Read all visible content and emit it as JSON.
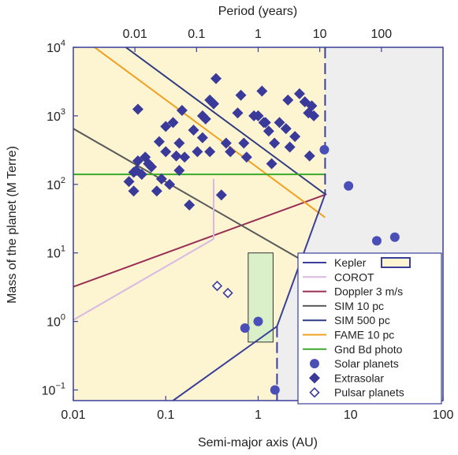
{
  "chart_data": {
    "type": "scatter",
    "xlabel": "Semi-major axis (AU)",
    "ylabel": "Mass of the planet (M Terre)",
    "x2label": "Period (years)",
    "xscale": "log",
    "yscale": "log",
    "xlim": [
      0.01,
      100
    ],
    "ylim": [
      0.07,
      10000
    ],
    "x_ticks": [
      {
        "value": 0.01,
        "label": "0.01"
      },
      {
        "value": 0.1,
        "label": "0.1"
      },
      {
        "value": 1,
        "label": "1"
      },
      {
        "value": 10,
        "label": "10"
      },
      {
        "value": 100,
        "label": "100"
      }
    ],
    "top_ticks": [
      {
        "value": 0.01,
        "label": "0.01"
      },
      {
        "value": 0.1,
        "label": "0.1"
      },
      {
        "value": 1,
        "label": "1"
      },
      {
        "value": 10,
        "label": "10"
      },
      {
        "value": 100,
        "label": "100"
      }
    ],
    "y_ticks": [
      {
        "value": 0.1,
        "base": "10",
        "exp": "−1"
      },
      {
        "value": 1,
        "base": "10",
        "exp": "0"
      },
      {
        "value": 10,
        "base": "10",
        "exp": "1"
      },
      {
        "value": 100,
        "base": "10",
        "exp": "2"
      },
      {
        "value": 1000,
        "base": "10",
        "exp": "3"
      },
      {
        "value": 10000,
        "base": "10",
        "exp": "4"
      }
    ],
    "legend_position": "bottom-right",
    "grid": false,
    "colors": {
      "kepler": "#3a3f9a",
      "corot": "#d8b8e2",
      "doppler": "#9a2f55",
      "sim10": "#5a5a5a",
      "sim500": "#2f3c80",
      "fame": "#f0a020",
      "gnd": "#3aaa2a",
      "solar": "#4a4fb8",
      "extrasolar": "#3a3a9a",
      "pulsar": "#3a3a9a",
      "region_fill": "#fdf5d2",
      "outer_fill": "#eeeeef",
      "gnd_fill": "#d9f0c8"
    },
    "lines": [
      {
        "name": "Doppler 3 m/s",
        "color": "doppler",
        "points": [
          [
            0.01,
            3.2
          ],
          [
            5.5,
            72
          ]
        ]
      },
      {
        "name": "SIM 10 pc",
        "color": "sim10",
        "points": [
          [
            0.01,
            650
          ],
          [
            4.2,
            6
          ]
        ]
      },
      {
        "name": "SIM 500 pc",
        "color": "sim500",
        "points": [
          [
            0.037,
            10000
          ],
          [
            5.3,
            72
          ]
        ]
      },
      {
        "name": "FAME 10 pc",
        "color": "fame",
        "points": [
          [
            0.017,
            10000
          ],
          [
            5.3,
            33
          ]
        ]
      },
      {
        "name": "Gnd Bd photo",
        "color": "gnd",
        "points": [
          [
            0.01,
            140
          ],
          [
            5.3,
            140
          ]
        ]
      },
      {
        "name": "COROT",
        "color": "corot",
        "points": [
          [
            0.01,
            1.05
          ],
          [
            0.33,
            16
          ]
        ]
      }
    ],
    "series": [
      {
        "name": "Extrasolar",
        "marker": "diamond-filled",
        "points": [
          [
            0.05,
            1250
          ],
          [
            0.04,
            110
          ],
          [
            0.045,
            150
          ],
          [
            0.048,
            160
          ],
          [
            0.05,
            220
          ],
          [
            0.055,
            140
          ],
          [
            0.06,
            250
          ],
          [
            0.045,
            80
          ],
          [
            0.065,
            200
          ],
          [
            0.07,
            180
          ],
          [
            0.085,
            420
          ],
          [
            0.1,
            300
          ],
          [
            0.12,
            800
          ],
          [
            0.15,
            1200
          ],
          [
            0.1,
            700
          ],
          [
            0.09,
            120
          ],
          [
            0.08,
            80
          ],
          [
            0.11,
            100
          ],
          [
            0.13,
            260
          ],
          [
            0.14,
            160
          ],
          [
            0.16,
            250
          ],
          [
            0.14,
            400
          ],
          [
            0.18,
            50
          ],
          [
            0.2,
            620
          ],
          [
            0.22,
            300
          ],
          [
            0.25,
            1000
          ],
          [
            0.3,
            300
          ],
          [
            0.27,
            900
          ],
          [
            0.33,
            1500
          ],
          [
            0.35,
            3500
          ],
          [
            0.3,
            1700
          ],
          [
            0.5,
            300
          ],
          [
            0.45,
            400
          ],
          [
            0.6,
            1100
          ],
          [
            0.65,
            2000
          ],
          [
            0.7,
            400
          ],
          [
            0.75,
            250
          ],
          [
            0.9,
            1000
          ],
          [
            1.1,
            2300
          ],
          [
            1.0,
            1000
          ],
          [
            1.2,
            800
          ],
          [
            1.3,
            600
          ],
          [
            1.5,
            400
          ],
          [
            1.7,
            800
          ],
          [
            2.0,
            650
          ],
          [
            2.1,
            1700
          ],
          [
            2.5,
            500
          ],
          [
            2.8,
            2100
          ],
          [
            3.2,
            1600
          ],
          [
            3.5,
            1100
          ],
          [
            3.8,
            1400
          ],
          [
            4.0,
            1000
          ],
          [
            2.2,
            350
          ],
          [
            1.4,
            200
          ],
          [
            0.4,
            70
          ],
          [
            3.6,
            260
          ],
          [
            1.15,
            800
          ],
          [
            0.25,
            480
          ]
        ]
      },
      {
        "name": "Solar planets",
        "marker": "circle-filled",
        "points": [
          [
            0.39,
            0.055
          ],
          [
            0.72,
            0.8
          ],
          [
            1.0,
            1.0
          ],
          [
            1.52,
            0.1
          ],
          [
            5.2,
            320
          ],
          [
            9.5,
            95
          ],
          [
            19.2,
            15
          ],
          [
            30.1,
            17
          ]
        ]
      },
      {
        "name": "Pulsar planets",
        "marker": "diamond-open",
        "points": [
          [
            0.36,
            3.3
          ],
          [
            0.47,
            2.6
          ]
        ]
      }
    ],
    "legend": [
      {
        "label": "Kepler",
        "kind": "line-box",
        "color": "kepler"
      },
      {
        "label": "COROT",
        "kind": "line",
        "color": "corot"
      },
      {
        "label": "Doppler 3 m/s",
        "kind": "line",
        "color": "doppler"
      },
      {
        "label": "SIM 10 pc",
        "kind": "line",
        "color": "sim10"
      },
      {
        "label": "SIM 500 pc",
        "kind": "line",
        "color": "sim500"
      },
      {
        "label": "FAME 10 pc",
        "kind": "line",
        "color": "fame"
      },
      {
        "label": "Gnd Bd photo",
        "kind": "line",
        "color": "gnd"
      },
      {
        "label": "Solar planets",
        "kind": "circle",
        "color": "solar"
      },
      {
        "label": "Extrasolar",
        "kind": "diamond",
        "color": "extrasolar"
      },
      {
        "label": "Pulsar planets",
        "kind": "diamond-open",
        "color": "pulsar"
      }
    ]
  }
}
